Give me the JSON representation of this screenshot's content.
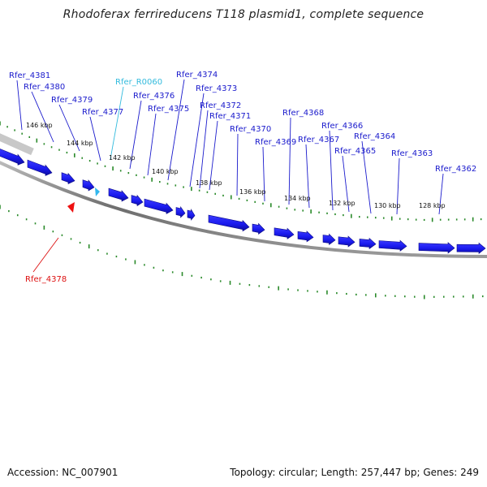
{
  "title": "Rhodoferax ferrireducens T118 plasmid1, complete sequence",
  "footer": {
    "accession": "Accession: NC_007901",
    "summary": "Topology: circular; Length: 257,447 bp; Genes: 249"
  },
  "colors": {
    "forward_gene": "#1a1aee",
    "trna": "#33b8ee",
    "reverse_gene": "#ee1111",
    "backbone": "#777777",
    "tick": "#2a8a2a",
    "label_forward": "#1a1acc",
    "label_trna": "#33bbdd",
    "label_reverse": "#dd1111"
  },
  "kbp_ticks": [
    {
      "kbp": 146,
      "label": "146 kbp"
    },
    {
      "kbp": 144,
      "label": "144 kbp"
    },
    {
      "kbp": 142,
      "label": "142 kbp"
    },
    {
      "kbp": 140,
      "label": "140 kbp"
    },
    {
      "kbp": 138,
      "label": "138 kbp"
    },
    {
      "kbp": 136,
      "label": "136 kbp"
    },
    {
      "kbp": 134,
      "label": "134 kbp"
    },
    {
      "kbp": 132,
      "label": "132 kbp"
    },
    {
      "kbp": 130,
      "label": "130 kbp"
    },
    {
      "kbp": 128,
      "label": "128 kbp"
    }
  ],
  "gene_labels": [
    {
      "name": "Rfer_4381",
      "type": "forward"
    },
    {
      "name": "Rfer_4380",
      "type": "forward"
    },
    {
      "name": "Rfer_4379",
      "type": "forward"
    },
    {
      "name": "Rfer_4377",
      "type": "forward"
    },
    {
      "name": "Rfer_R0060",
      "type": "trna"
    },
    {
      "name": "Rfer_4376",
      "type": "forward"
    },
    {
      "name": "Rfer_4375",
      "type": "forward"
    },
    {
      "name": "Rfer_4374",
      "type": "forward"
    },
    {
      "name": "Rfer_4373",
      "type": "forward"
    },
    {
      "name": "Rfer_4372",
      "type": "forward"
    },
    {
      "name": "Rfer_4371",
      "type": "forward"
    },
    {
      "name": "Rfer_4370",
      "type": "forward"
    },
    {
      "name": "Rfer_4369",
      "type": "forward"
    },
    {
      "name": "Rfer_4368",
      "type": "forward"
    },
    {
      "name": "Rfer_4367",
      "type": "forward"
    },
    {
      "name": "Rfer_4366",
      "type": "forward"
    },
    {
      "name": "Rfer_4365",
      "type": "forward"
    },
    {
      "name": "Rfer_4364",
      "type": "forward"
    },
    {
      "name": "Rfer_4363",
      "type": "forward"
    },
    {
      "name": "Rfer_4362",
      "type": "forward"
    },
    {
      "name": "Rfer_4378",
      "type": "reverse"
    }
  ]
}
